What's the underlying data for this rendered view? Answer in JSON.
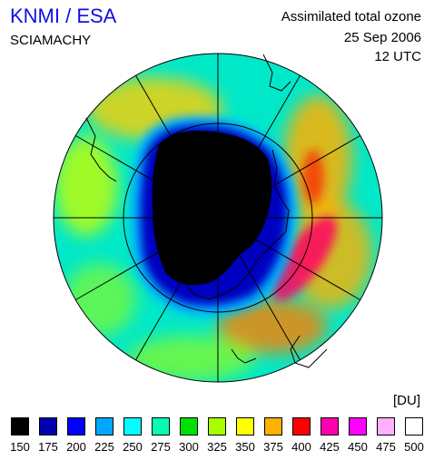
{
  "header": {
    "agency": "KNMI / ESA",
    "instrument": "SCIAMACHY",
    "product": "Assimilated total ozone",
    "date": "25 Sep 2006",
    "time": "12 UTC"
  },
  "legend": {
    "unit": "[DU]",
    "ticks": [
      "150",
      "175",
      "200",
      "225",
      "250",
      "275",
      "300",
      "325",
      "350",
      "375",
      "400",
      "425",
      "450",
      "475",
      "500"
    ],
    "colors": [
      "#000000",
      "#0000b0",
      "#0000ff",
      "#00a8ff",
      "#00ffff",
      "#00ffb0",
      "#00e000",
      "#a8ff00",
      "#ffff00",
      "#ffb000",
      "#ff0000",
      "#ff00b0",
      "#ff00ff",
      "#ffb0ff",
      "#ffffff"
    ]
  },
  "map": {
    "projection": "south-polar-stereographic",
    "ozone_hole_color": "#000000",
    "rim_color": "#0000c0",
    "background_color": "#00e8c8",
    "graticule_color": "#000000"
  }
}
